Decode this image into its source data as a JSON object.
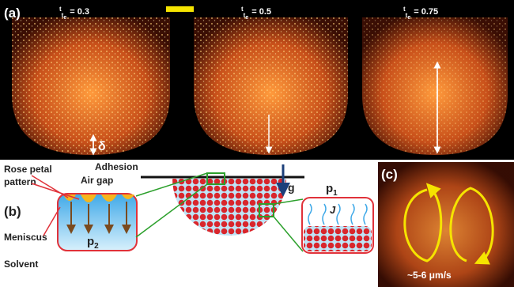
{
  "panel_a": {
    "label": "(a)",
    "frames": [
      {
        "ratio_top": "t",
        "ratio_bottom": "t",
        "ratio_sub": "e",
        "value": "= 0.3"
      },
      {
        "ratio_top": "t",
        "ratio_bottom": "t",
        "ratio_sub": "e",
        "value": "= 0.5"
      },
      {
        "ratio_top": "t",
        "ratio_bottom": "t",
        "ratio_sub": "e",
        "value": "= 0.75"
      }
    ],
    "delta": "δ"
  },
  "panel_b": {
    "label": "(b)",
    "rose_petal": [
      "Rose petal",
      "pattern"
    ],
    "air_gap": "Air gap",
    "adhesion": "Adhesion",
    "meniscus": "Meniscus",
    "p2": {
      "base": "p",
      "sub": "2"
    },
    "solvent": "Solvent",
    "gravity": "g",
    "p1": {
      "base": "p",
      "sub": "1"
    },
    "flux": "J"
  },
  "panel_c": {
    "label": "(c)",
    "speed": "~5-6 μm/s"
  }
}
